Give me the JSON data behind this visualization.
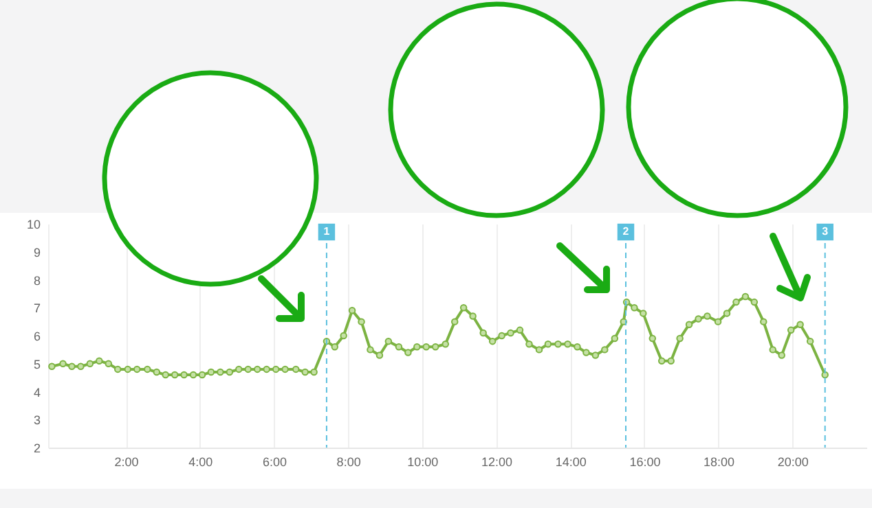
{
  "chart_data": {
    "type": "line",
    "x": [
      0,
      0.3,
      0.54,
      0.78,
      1.03,
      1.28,
      1.53,
      1.78,
      2.05,
      2.3,
      2.58,
      2.83,
      3.07,
      3.32,
      3.57,
      3.82,
      4.06,
      4.3,
      4.55,
      4.8,
      5.05,
      5.3,
      5.55,
      5.8,
      6.05,
      6.3,
      6.59,
      6.84,
      7.08,
      7.42,
      7.64,
      7.88,
      8.11,
      8.36,
      8.6,
      8.85,
      9.09,
      9.37,
      9.62,
      9.86,
      10.11,
      10.36,
      10.63,
      10.88,
      11.12,
      11.37,
      11.65,
      11.9,
      12.15,
      12.39,
      12.64,
      12.89,
      13.16,
      13.4,
      13.67,
      13.93,
      14.19,
      14.43,
      14.68,
      14.93,
      15.2,
      15.44,
      15.52,
      15.73,
      15.97,
      16.22,
      16.47,
      16.72,
      16.96,
      17.21,
      17.46,
      17.7,
      17.99,
      18.23,
      18.48,
      18.73,
      18.97,
      19.22,
      19.47,
      19.71,
      19.96,
      20.21,
      20.48,
      20.88
    ],
    "series": [
      {
        "color": "#7cb342",
        "values": [
          4.9,
          5.0,
          4.9,
          4.9,
          5.0,
          5.1,
          5.0,
          4.8,
          4.8,
          4.8,
          4.8,
          4.7,
          4.6,
          4.6,
          4.6,
          4.6,
          4.6,
          4.7,
          4.7,
          4.7,
          4.8,
          4.8,
          4.8,
          4.8,
          4.8,
          4.8,
          4.8,
          4.7,
          4.7,
          5.8,
          5.6,
          6.0,
          6.9,
          6.5,
          5.5,
          5.3,
          5.8,
          5.6,
          5.4,
          5.6,
          5.6,
          5.6,
          5.7,
          6.5,
          7.0,
          6.7,
          6.1,
          5.8,
          6.0,
          6.1,
          6.2,
          5.7,
          5.5,
          5.7,
          5.7,
          5.7,
          5.6,
          5.4,
          5.3,
          5.5,
          5.9,
          6.5,
          7.2,
          7.0,
          6.8,
          5.9,
          5.1,
          5.1,
          5.9,
          6.4,
          6.6,
          6.7,
          6.5,
          6.8,
          7.2,
          7.4,
          7.2,
          6.5,
          5.5,
          5.3,
          6.2,
          6.4,
          5.8,
          4.6
        ]
      }
    ],
    "xlim": [
      -0.1,
      22
    ],
    "xticks": [
      {
        "value": 2,
        "label": "2:00"
      },
      {
        "value": 4,
        "label": "4:00"
      },
      {
        "value": 6,
        "label": "6:00"
      },
      {
        "value": 8,
        "label": "8:00"
      },
      {
        "value": 10,
        "label": "10:00"
      },
      {
        "value": 12,
        "label": "12:00"
      },
      {
        "value": 14,
        "label": "14:00"
      },
      {
        "value": 16,
        "label": "16:00"
      },
      {
        "value": 18,
        "label": "18:00"
      },
      {
        "value": 20,
        "label": "20:00"
      }
    ],
    "ylim": [
      2,
      10
    ],
    "yticks": [
      2,
      3,
      4,
      5,
      6,
      7,
      8,
      9,
      10
    ],
    "grid": "x",
    "marker": "circle",
    "ref_lines": [
      {
        "axis": "x",
        "value": 7.42,
        "color": "#5bc0de",
        "line_style": "dashed"
      },
      {
        "axis": "x",
        "value": 15.5,
        "color": "#5bc0de",
        "line_style": "dashed"
      },
      {
        "axis": "x",
        "value": 20.88,
        "color": "#5bc0de",
        "line_style": "dashed"
      }
    ],
    "annotations": [
      {
        "text": "1",
        "x": 7.42,
        "y": 10
      },
      {
        "text": "2",
        "x": 15.5,
        "y": 10
      },
      {
        "text": "3",
        "x": 20.88,
        "y": 10
      }
    ]
  }
}
